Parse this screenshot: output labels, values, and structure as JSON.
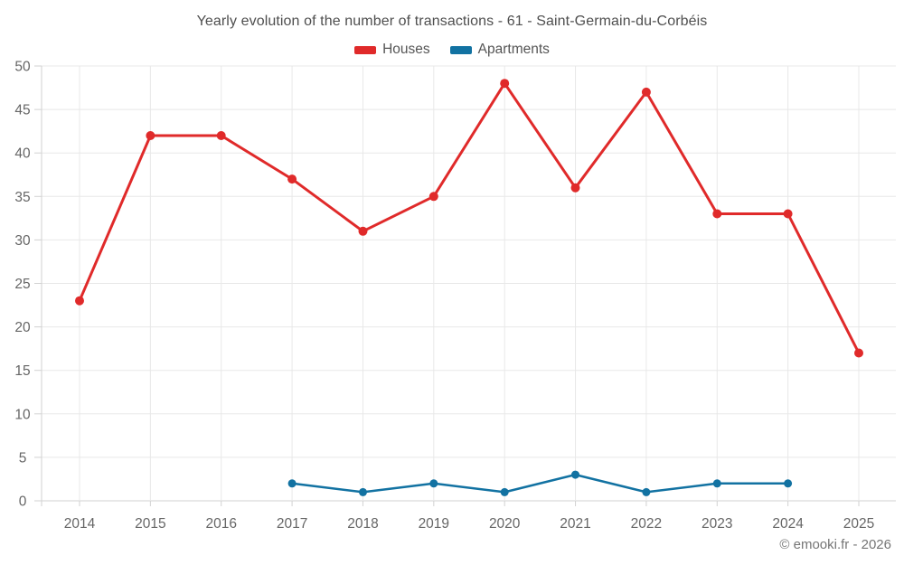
{
  "header": {
    "title": "Yearly evolution of the number of transactions - 61 - Saint-Germain-du-Corbéis"
  },
  "footer": {
    "credit": "© emooki.fr - 2026"
  },
  "chart_data": {
    "type": "line",
    "title": "Yearly evolution of the number of transactions - 61 - Saint-Germain-du-Corbéis",
    "categories": [
      "2014",
      "2015",
      "2016",
      "2017",
      "2018",
      "2019",
      "2020",
      "2021",
      "2022",
      "2023",
      "2024",
      "2025"
    ],
    "series": [
      {
        "name": "Houses",
        "color": "#e02a2a",
        "values": [
          23,
          42,
          42,
          37,
          31,
          35,
          48,
          36,
          47,
          33,
          33,
          17
        ]
      },
      {
        "name": "Apartments",
        "color": "#1272a2",
        "values": [
          null,
          null,
          null,
          2,
          1,
          2,
          1,
          3,
          1,
          2,
          2,
          null
        ]
      }
    ],
    "xlabel": "",
    "ylabel": "",
    "ylim": [
      0,
      50
    ],
    "ytick_step": 5,
    "yticks": [
      0,
      5,
      10,
      15,
      20,
      25,
      30,
      35,
      40,
      45,
      50
    ],
    "grid": true,
    "legend_position": "top",
    "colors": {
      "grid_line": "#e8e8e8",
      "axis_line": "#d2d2d2",
      "axis_text": "#666666",
      "title_text": "#4f4f4f"
    }
  }
}
